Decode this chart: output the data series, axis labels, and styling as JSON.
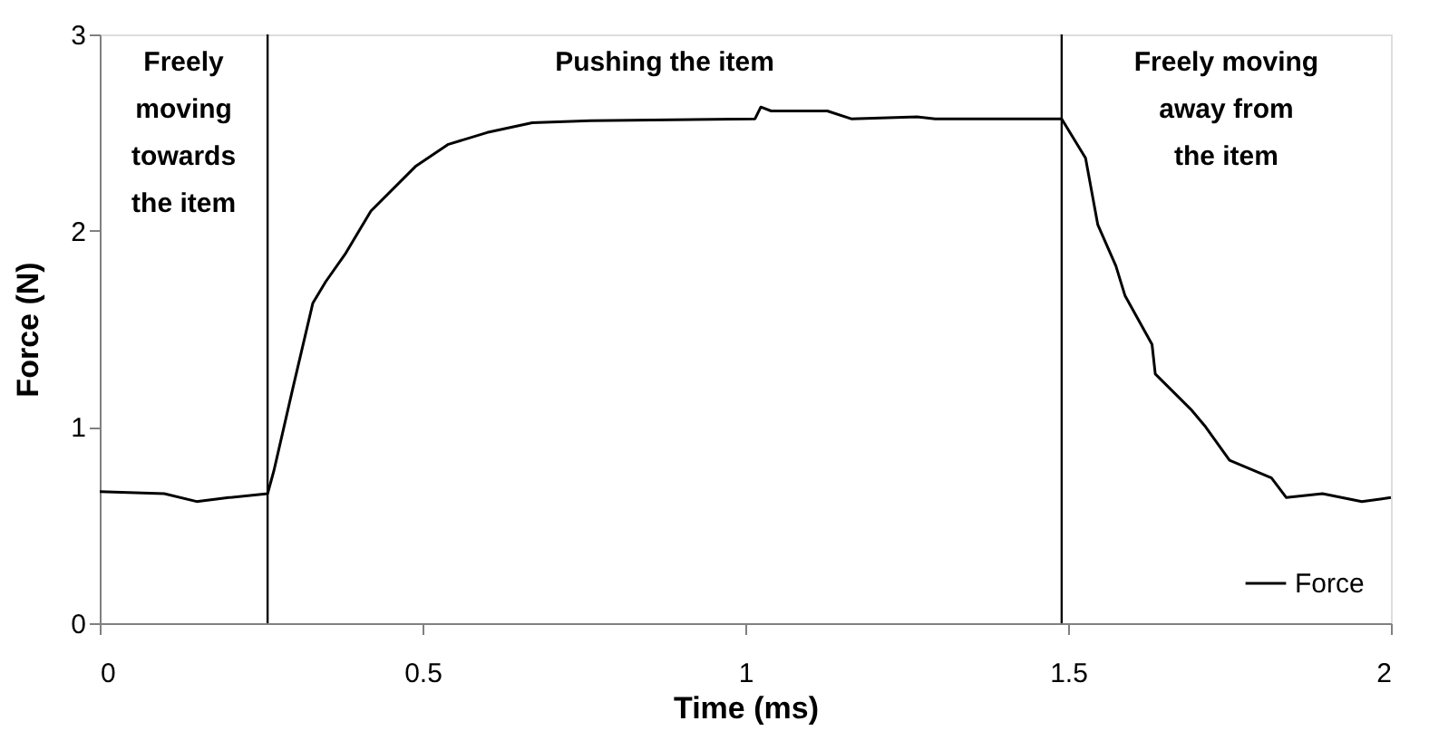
{
  "chart_data": {
    "type": "line",
    "xlabel": "Time (ms)",
    "ylabel": "Force (N)",
    "xlim": [
      0,
      2
    ],
    "xticks": [
      0,
      0.5,
      1,
      1.5,
      2
    ],
    "ylim": [
      0,
      3
    ],
    "yticks": [
      0,
      1,
      2,
      3
    ],
    "grid": false,
    "legend": "bottom right",
    "line_style": "solid",
    "marker": "none",
    "ref_lines": [
      {
        "axis": "x",
        "value": 0.26,
        "color": "#000000"
      },
      {
        "axis": "x",
        "value": 1.49,
        "color": "#000000"
      }
    ],
    "annotations": [
      "Freely\nmoving\ntowards\nthe item",
      "Pushing the item",
      "Freely moving\naway from\nthe item"
    ],
    "series": [
      {
        "name": "Force",
        "color": "#000000",
        "x": [
          0,
          0.1,
          0.15,
          0.2,
          0.26,
          0.27,
          0.3,
          0.33,
          0.35,
          0.38,
          0.42,
          0.49,
          0.54,
          0.6,
          0.67,
          0.76,
          1.015,
          1.024,
          1.04,
          1.127,
          1.164,
          1.266,
          1.294,
          1.49,
          1.527,
          1.546,
          1.574,
          1.588,
          1.63,
          1.635,
          1.69,
          1.713,
          1.75,
          1.815,
          1.838,
          1.894,
          1.955,
          2.0
        ],
        "values": [
          0.67,
          0.66,
          0.62,
          0.64,
          0.66,
          0.78,
          1.21,
          1.63,
          1.74,
          1.88,
          2.1,
          2.33,
          2.44,
          2.5,
          2.55,
          2.56,
          2.57,
          2.63,
          2.61,
          2.61,
          2.57,
          2.58,
          2.57,
          2.57,
          2.37,
          2.03,
          1.82,
          1.67,
          1.42,
          1.27,
          1.09,
          1.0,
          0.83,
          0.74,
          0.64,
          0.66,
          0.62,
          0.64
        ]
      }
    ]
  }
}
